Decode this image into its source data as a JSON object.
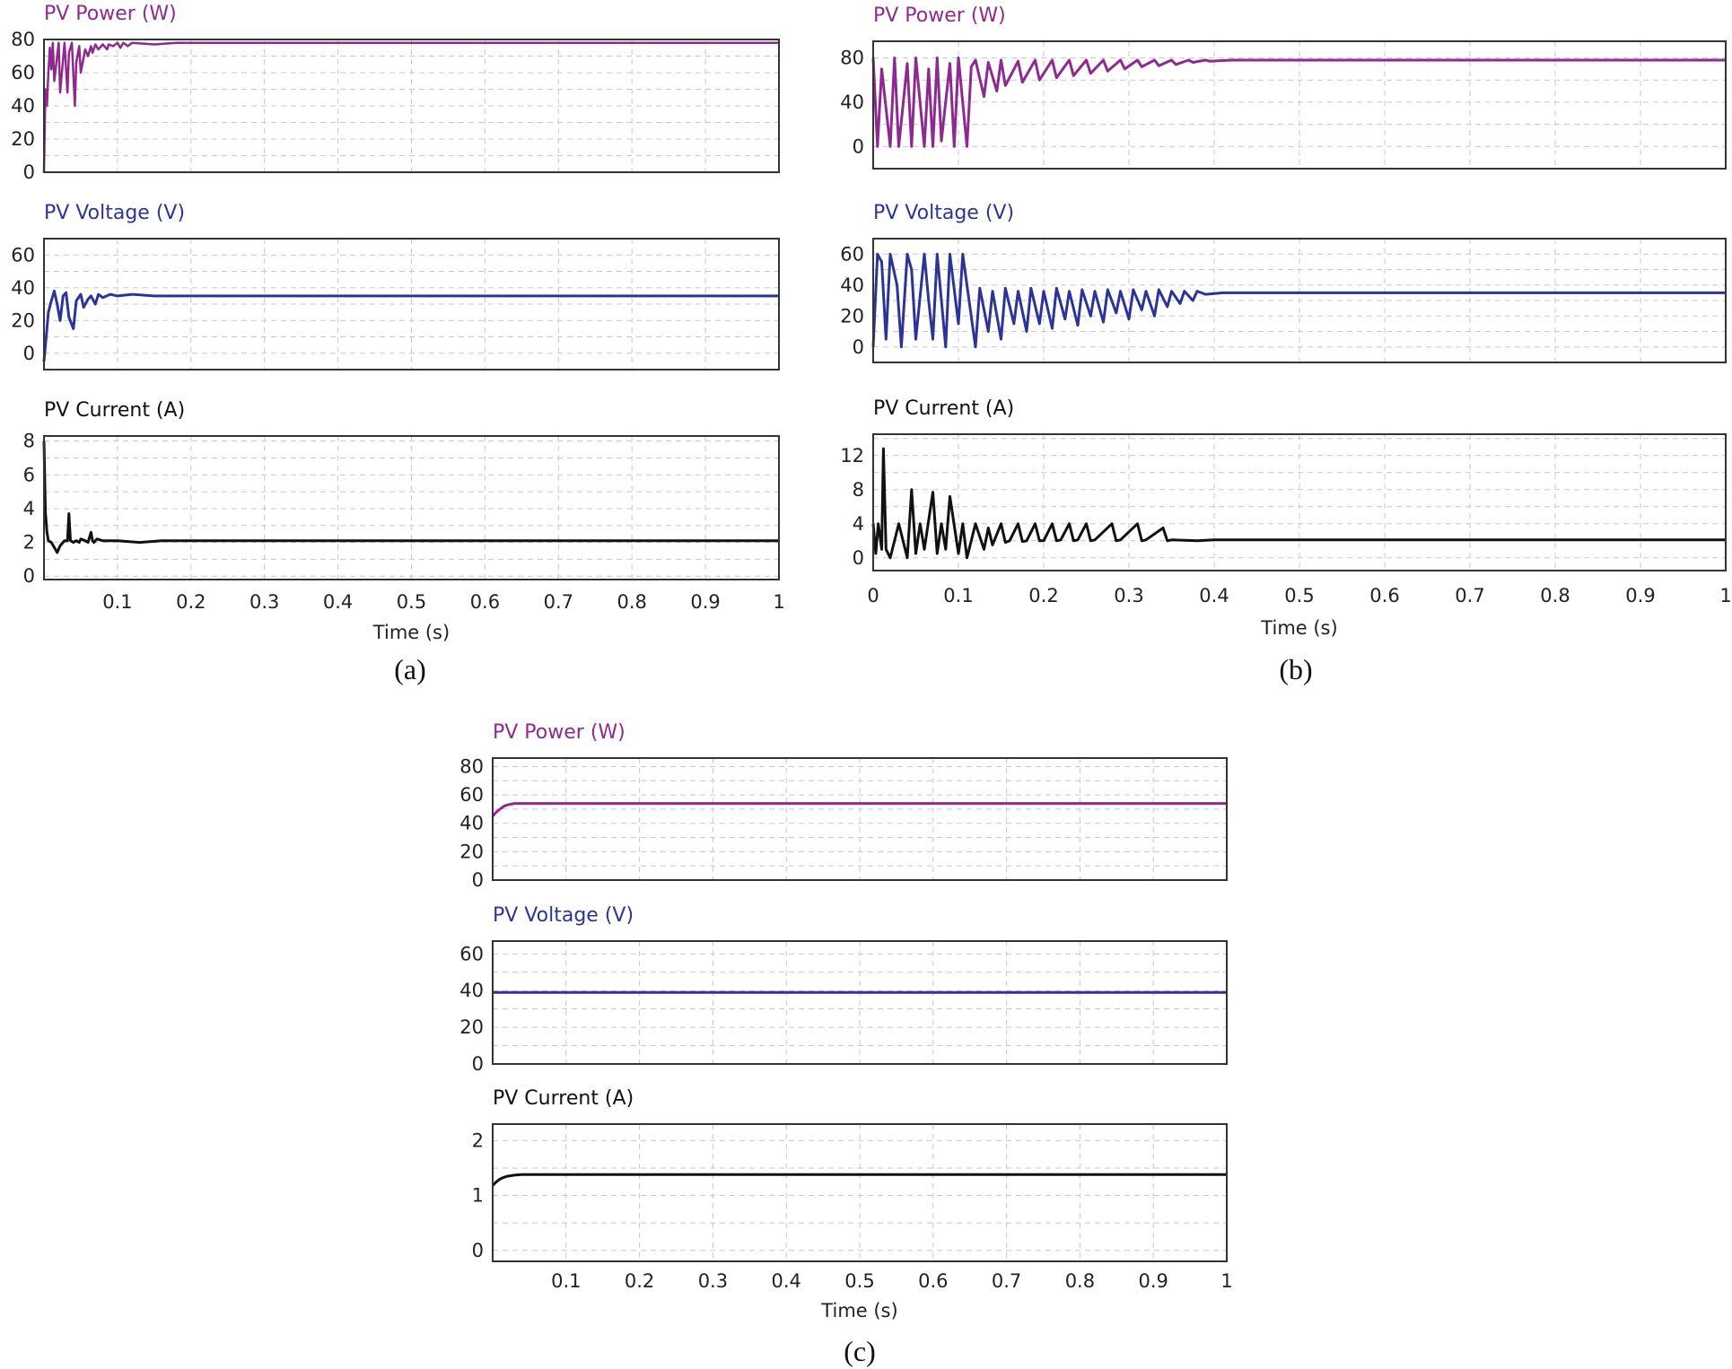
{
  "colors": {
    "power": "#8e2a8f",
    "voltage": "#2c3595",
    "current": "#111111"
  },
  "chart_data": [
    {
      "id": "a",
      "caption": "(a)",
      "type": "line",
      "xlabel": "Time (s)",
      "xlim": [
        0,
        1
      ],
      "xticks": [
        "0.1",
        "0.2",
        "0.3",
        "0.4",
        "0.5",
        "0.6",
        "0.7",
        "0.8",
        "0.9",
        "1"
      ],
      "panels": [
        {
          "title": "PV Power (W)",
          "color": "power",
          "ylim": [
            0,
            80
          ],
          "yticks": [
            "0",
            "20",
            "40",
            "60",
            "80"
          ],
          "series": {
            "x": [
              0,
              0.002,
              0.004,
              0.006,
              0.008,
              0.01,
              0.012,
              0.014,
              0.018,
              0.02,
              0.022,
              0.026,
              0.028,
              0.032,
              0.034,
              0.038,
              0.042,
              0.044,
              0.048,
              0.05,
              0.056,
              0.06,
              0.064,
              0.066,
              0.07,
              0.074,
              0.08,
              0.086,
              0.088,
              0.094,
              0.1,
              0.104,
              0.108,
              0.114,
              0.12,
              0.15,
              0.18,
              0.2,
              0.25,
              1
            ],
            "y": [
              0,
              50,
              40,
              60,
              75,
              62,
              78,
              55,
              70,
              78,
              48,
              68,
              78,
              48,
              72,
              78,
              40,
              66,
              76,
              60,
              74,
              70,
              76,
              72,
              77,
              74,
              77,
              74,
              77,
              76,
              78,
              75,
              78,
              76,
              78,
              77,
              78,
              78,
              78,
              78
            ]
          }
        },
        {
          "title": "PV Voltage (V)",
          "color": "voltage",
          "ylim": [
            -10,
            70
          ],
          "yticks": [
            "0",
            "20",
            "40",
            "60"
          ],
          "series": {
            "x": [
              0,
              0.003,
              0.006,
              0.01,
              0.014,
              0.018,
              0.022,
              0.026,
              0.03,
              0.034,
              0.04,
              0.044,
              0.05,
              0.054,
              0.06,
              0.064,
              0.07,
              0.074,
              0.08,
              0.09,
              0.1,
              0.12,
              0.15,
              0.2,
              1
            ],
            "y": [
              -5,
              10,
              25,
              32,
              38,
              30,
              20,
              35,
              37,
              22,
              15,
              32,
              36,
              28,
              33,
              35,
              30,
              36,
              34,
              36,
              35,
              36,
              35,
              35,
              35
            ]
          }
        },
        {
          "title": "PV Current (A)",
          "color": "current",
          "ylim": [
            -0.2,
            8.3
          ],
          "yticks": [
            "0",
            "2",
            "4",
            "6",
            "8"
          ],
          "series": {
            "x": [
              0,
              0.002,
              0.004,
              0.006,
              0.01,
              0.014,
              0.018,
              0.022,
              0.028,
              0.032,
              0.034,
              0.036,
              0.04,
              0.044,
              0.048,
              0.05,
              0.056,
              0.06,
              0.064,
              0.066,
              0.068,
              0.072,
              0.08,
              0.1,
              0.13,
              0.16,
              0.2,
              0.25,
              1
            ],
            "y": [
              8,
              3.8,
              2.6,
              2.1,
              2,
              1.7,
              1.4,
              1.8,
              2.1,
              2.1,
              3.7,
              2.1,
              2,
              2.1,
              2,
              2.2,
              2.1,
              2,
              2.6,
              2.1,
              2,
              2.2,
              2.1,
              2.1,
              2,
              2.1,
              2.1,
              2.1,
              2.1
            ]
          }
        }
      ]
    },
    {
      "id": "b",
      "caption": "(b)",
      "type": "line",
      "xlabel": "Time (s)",
      "xlim": [
        0,
        1
      ],
      "xticks": [
        "0",
        "0.1",
        "0.2",
        "0.3",
        "0.4",
        "0.5",
        "0.6",
        "0.7",
        "0.8",
        "0.9",
        "1"
      ],
      "panels": [
        {
          "title": "PV Power (W)",
          "color": "power",
          "ylim": [
            -20,
            95
          ],
          "yticks": [
            "0",
            "40",
            "80"
          ],
          "series": {
            "x": [
              0,
              0.005,
              0.01,
              0.02,
              0.025,
              0.03,
              0.04,
              0.045,
              0.05,
              0.06,
              0.065,
              0.07,
              0.075,
              0.08,
              0.09,
              0.095,
              0.1,
              0.11,
              0.115,
              0.12,
              0.13,
              0.135,
              0.145,
              0.15,
              0.155,
              0.17,
              0.175,
              0.19,
              0.195,
              0.21,
              0.215,
              0.23,
              0.235,
              0.25,
              0.255,
              0.27,
              0.275,
              0.29,
              0.295,
              0.31,
              0.315,
              0.33,
              0.335,
              0.35,
              0.355,
              0.37,
              0.375,
              0.39,
              0.395,
              0.42,
              1
            ],
            "y": [
              80,
              0,
              70,
              0,
              80,
              0,
              75,
              0,
              80,
              0,
              70,
              0,
              80,
              5,
              75,
              0,
              80,
              0,
              72,
              78,
              45,
              76,
              50,
              78,
              55,
              77,
              58,
              78,
              60,
              78,
              62,
              78,
              64,
              78,
              66,
              78,
              68,
              78,
              70,
              78,
              72,
              78,
              73,
              78,
              74,
              78,
              76,
              78,
              77,
              78,
              78
            ]
          }
        },
        {
          "title": "PV Voltage (V)",
          "color": "voltage",
          "ylim": [
            -10,
            70
          ],
          "yticks": [
            "0",
            "20",
            "40",
            "60"
          ],
          "series": {
            "x": [
              0,
              0.005,
              0.01,
              0.015,
              0.02,
              0.028,
              0.033,
              0.04,
              0.045,
              0.05,
              0.06,
              0.065,
              0.07,
              0.075,
              0.085,
              0.09,
              0.1,
              0.105,
              0.11,
              0.12,
              0.125,
              0.135,
              0.14,
              0.15,
              0.155,
              0.165,
              0.17,
              0.18,
              0.185,
              0.195,
              0.2,
              0.21,
              0.215,
              0.225,
              0.23,
              0.24,
              0.245,
              0.255,
              0.26,
              0.27,
              0.275,
              0.285,
              0.29,
              0.3,
              0.305,
              0.315,
              0.32,
              0.33,
              0.335,
              0.345,
              0.35,
              0.36,
              0.365,
              0.375,
              0.38,
              0.39,
              0.41,
              0.42,
              1
            ],
            "y": [
              0,
              60,
              55,
              5,
              60,
              40,
              0,
              60,
              50,
              5,
              60,
              30,
              5,
              60,
              0,
              60,
              15,
              60,
              40,
              0,
              38,
              10,
              36,
              5,
              38,
              15,
              36,
              10,
              38,
              15,
              36,
              12,
              38,
              18,
              36,
              14,
              37,
              20,
              36,
              16,
              37,
              22,
              36,
              18,
              37,
              24,
              36,
              20,
              37,
              26,
              36,
              28,
              36,
              30,
              36,
              34,
              35,
              35,
              35
            ]
          }
        },
        {
          "title": "PV Current (A)",
          "color": "current",
          "ylim": [
            -1.5,
            14.5
          ],
          "yticks": [
            "0",
            "4",
            "8",
            "12"
          ],
          "series": {
            "x": [
              0,
              0.003,
              0.006,
              0.01,
              0.012,
              0.015,
              0.02,
              0.025,
              0.03,
              0.04,
              0.045,
              0.05,
              0.055,
              0.06,
              0.07,
              0.075,
              0.08,
              0.085,
              0.09,
              0.1,
              0.105,
              0.11,
              0.115,
              0.12,
              0.13,
              0.135,
              0.14,
              0.15,
              0.155,
              0.16,
              0.17,
              0.175,
              0.18,
              0.19,
              0.195,
              0.2,
              0.21,
              0.215,
              0.22,
              0.23,
              0.235,
              0.24,
              0.25,
              0.255,
              0.26,
              0.28,
              0.285,
              0.29,
              0.31,
              0.315,
              0.32,
              0.34,
              0.345,
              0.35,
              0.38,
              0.4,
              0.42,
              0.5,
              1
            ],
            "y": [
              4,
              0.5,
              4,
              1,
              12.8,
              1,
              0,
              2,
              4,
              0,
              8,
              0.5,
              4,
              1,
              7.7,
              0.5,
              4,
              1,
              7.2,
              0.5,
              4,
              0,
              2,
              4,
              1,
              3.5,
              1.5,
              4,
              1.8,
              2,
              4,
              1.9,
              2,
              4,
              2,
              2,
              4,
              2,
              2.1,
              4,
              2,
              2.1,
              4,
              2,
              2.1,
              4,
              2,
              2.1,
              4,
              2,
              2.1,
              3.5,
              2,
              2.1,
              2,
              2.1,
              2.1,
              2.1,
              2.1
            ]
          }
        }
      ]
    },
    {
      "id": "c",
      "caption": "(c)",
      "type": "line",
      "xlabel": "Time (s)",
      "xlim": [
        0,
        1
      ],
      "xticks": [
        "0.1",
        "0.2",
        "0.3",
        "0.4",
        "0.5",
        "0.6",
        "0.7",
        "0.8",
        "0.9",
        "1"
      ],
      "panels": [
        {
          "title": "PV Power (W)",
          "color": "power",
          "ylim": [
            0,
            86
          ],
          "yticks": [
            "0",
            "20",
            "40",
            "60",
            "80"
          ],
          "series": {
            "x": [
              0,
              0.005,
              0.01,
              0.015,
              0.02,
              0.03,
              0.04,
              1
            ],
            "y": [
              45,
              48,
              50,
              52,
              53,
              54,
              54,
              54
            ]
          }
        },
        {
          "title": "PV Voltage (V)",
          "color": "voltage",
          "ylim": [
            0,
            67
          ],
          "yticks": [
            "0",
            "20",
            "40",
            "60"
          ],
          "series": {
            "x": [
              0,
              1
            ],
            "y": [
              39,
              39
            ]
          }
        },
        {
          "title": "PV Current (A)",
          "color": "current",
          "ylim": [
            -0.2,
            2.3
          ],
          "yticks": [
            "0",
            "1",
            "2"
          ],
          "series": {
            "x": [
              0,
              0.005,
              0.01,
              0.015,
              0.02,
              0.03,
              0.04,
              1
            ],
            "y": [
              1.18,
              1.25,
              1.3,
              1.33,
              1.35,
              1.37,
              1.38,
              1.38
            ]
          }
        }
      ]
    }
  ]
}
